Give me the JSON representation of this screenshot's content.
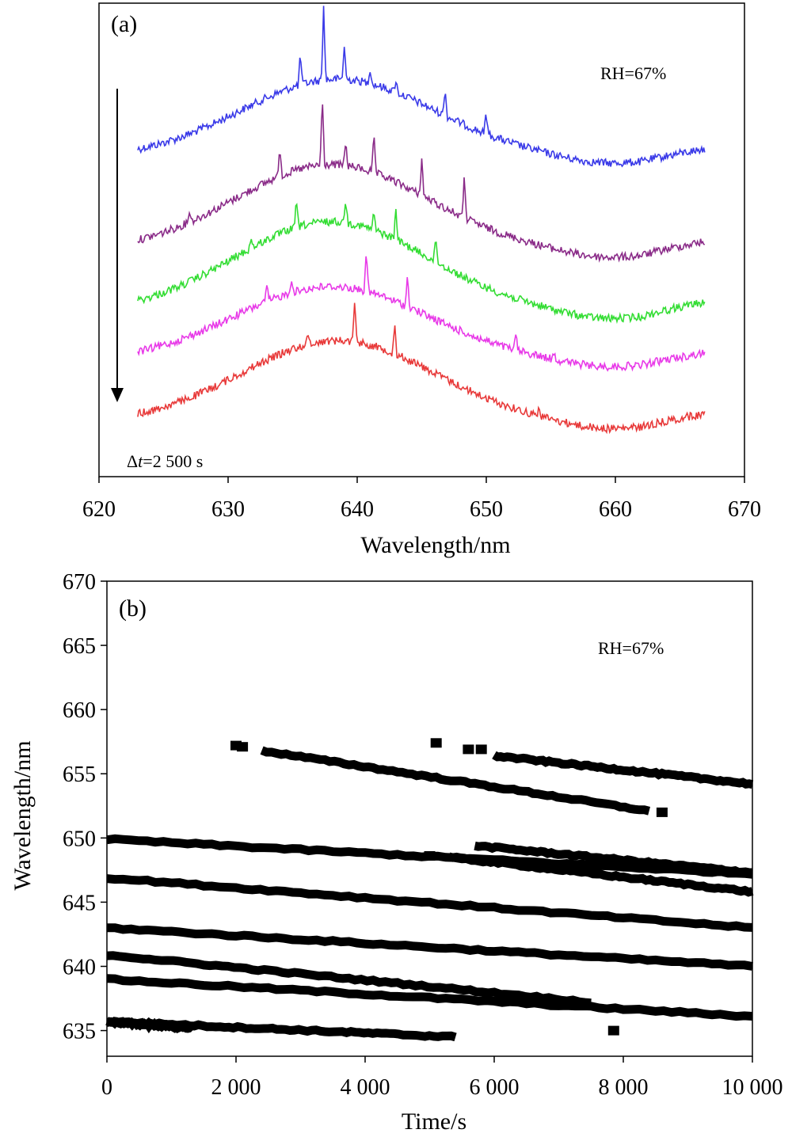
{
  "chart_data": [
    {
      "panel_label": "(a)",
      "type": "line",
      "annotation": "RH=67%",
      "time_step_prefix": "Δ",
      "time_step_var": "t",
      "time_step_value": "=2 500 s",
      "xlabel": "Wavelength/nm",
      "ylabel": "",
      "xlim": [
        620,
        670
      ],
      "x_ticks": [
        "620",
        "630",
        "640",
        "650",
        "660",
        "670"
      ],
      "y_ticks_shown": false,
      "series": [
        {
          "color": "#3a3ae8",
          "x_range": [
            623,
            667
          ],
          "peak_x": 638.5,
          "peaks": [
            {
              "x": 635.6,
              "h": 1.0
            },
            {
              "x": 637.4,
              "h": 2.4
            },
            {
              "x": 639.0,
              "h": 1.1
            },
            {
              "x": 641.0,
              "h": 0.5
            },
            {
              "x": 643.0,
              "h": 0.4
            },
            {
              "x": 646.8,
              "h": 0.9
            },
            {
              "x": 650.0,
              "h": 0.7
            }
          ]
        },
        {
          "color": "#8a2b88",
          "x_range": [
            623,
            667
          ],
          "peak_x": 638.0,
          "peaks": [
            {
              "x": 634.0,
              "h": 1.0
            },
            {
              "x": 637.3,
              "h": 2.2
            },
            {
              "x": 639.1,
              "h": 0.8
            },
            {
              "x": 641.3,
              "h": 1.2
            },
            {
              "x": 645.0,
              "h": 1.2
            },
            {
              "x": 648.3,
              "h": 1.4
            },
            {
              "x": 627.0,
              "h": 0.4
            }
          ]
        },
        {
          "color": "#33dd33",
          "x_range": [
            623,
            667
          ],
          "peak_x": 638.0,
          "peaks": [
            {
              "x": 635.3,
              "h": 0.9
            },
            {
              "x": 639.1,
              "h": 0.8
            },
            {
              "x": 641.3,
              "h": 0.6
            },
            {
              "x": 643.0,
              "h": 1.0
            },
            {
              "x": 646.1,
              "h": 0.8
            },
            {
              "x": 631.8,
              "h": 0.3
            }
          ]
        },
        {
          "color": "#e83ae8",
          "x_range": [
            623,
            667
          ],
          "peak_x": 638.0,
          "peaks": [
            {
              "x": 633.0,
              "h": 0.5
            },
            {
              "x": 634.9,
              "h": 0.5
            },
            {
              "x": 640.7,
              "h": 1.4
            },
            {
              "x": 643.9,
              "h": 1.0
            },
            {
              "x": 652.3,
              "h": 0.5
            },
            {
              "x": 655.2,
              "h": 0.3
            }
          ]
        },
        {
          "color": "#e83a3a",
          "x_range": [
            623,
            667
          ],
          "peak_x": 638.5,
          "peaks": [
            {
              "x": 636.2,
              "h": 0.3
            },
            {
              "x": 639.8,
              "h": 1.4
            },
            {
              "x": 642.9,
              "h": 1.0
            },
            {
              "x": 654.1,
              "h": 0.3
            }
          ]
        }
      ]
    },
    {
      "panel_label": "(b)",
      "type": "scatter",
      "annotation": "RH=67%",
      "xlabel": "Time/s",
      "ylabel": "Wavelength/nm",
      "xlim": [
        0,
        10000
      ],
      "ylim": [
        633,
        670
      ],
      "x_ticks": [
        "0",
        "2 000",
        "4 000",
        "6 000",
        "8 000",
        "10 000"
      ],
      "y_ticks": [
        "635",
        "640",
        "645",
        "650",
        "655",
        "660",
        "665",
        "670"
      ],
      "tracks": [
        {
          "x": [
            0,
            10000
          ],
          "y": [
            649.9,
            647.2
          ]
        },
        {
          "x": [
            0,
            10000
          ],
          "y": [
            646.9,
            643.0
          ]
        },
        {
          "x": [
            0,
            10000
          ],
          "y": [
            643.0,
            640.0
          ]
        },
        {
          "x": [
            0,
            7500
          ],
          "y": [
            640.9,
            637.2
          ]
        },
        {
          "x": [
            0,
            10000
          ],
          "y": [
            639.0,
            636.1
          ]
        },
        {
          "x": [
            0,
            5400
          ],
          "y": [
            635.7,
            634.5
          ]
        },
        {
          "x": [
            0,
            1300
          ],
          "y": [
            635.7,
            635.2
          ]
        },
        {
          "x": [
            2400,
            8400
          ],
          "y": [
            656.8,
            652.1
          ]
        },
        {
          "x": [
            6000,
            10000
          ],
          "y": [
            656.4,
            654.2
          ]
        },
        {
          "x": [
            5300,
            10000
          ],
          "y": [
            648.5,
            645.8
          ]
        },
        {
          "x": [
            5700,
            10000
          ],
          "y": [
            649.4,
            647.3
          ]
        }
      ],
      "isolated_points": [
        {
          "x": 2000,
          "y": 657.2
        },
        {
          "x": 2100,
          "y": 657.1
        },
        {
          "x": 5100,
          "y": 657.4
        },
        {
          "x": 5600,
          "y": 656.9
        },
        {
          "x": 5800,
          "y": 656.9
        },
        {
          "x": 8600,
          "y": 652.0
        },
        {
          "x": 5000,
          "y": 648.6
        },
        {
          "x": 7850,
          "y": 635.0
        }
      ]
    }
  ]
}
